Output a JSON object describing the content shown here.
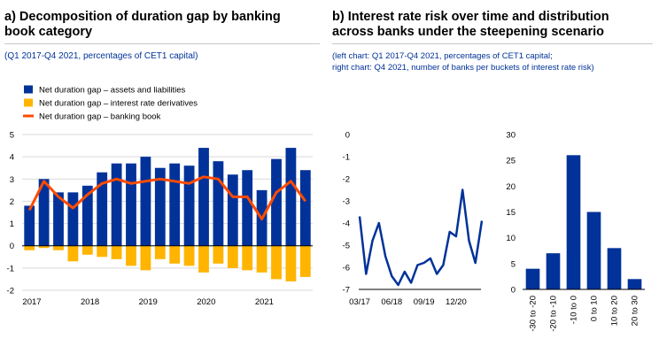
{
  "panel_a": {
    "title": "a) Decomposition of duration gap by banking book category",
    "subtitle": "(Q1 2017-Q4 2021, percentages of CET1 capital)"
  },
  "panel_b": {
    "title": "b) Interest rate risk over time and distribution across banks under the steepening scenario",
    "subtitle_line1": "(left chart: Q1 2017-Q4 2021, percentages of CET1 capital;",
    "subtitle_line2": "right chart: Q4 2021, number of banks per buckets of interest rate risk)"
  },
  "colors": {
    "assets_liabilities": "#003299",
    "derivatives": "#ffb400",
    "banking_book": "#ff4b00",
    "grid": "#d9d9d9",
    "axis": "#000000"
  },
  "chart_data": [
    {
      "type": "bar",
      "stacked": true,
      "x": [
        "2017Q1",
        "2017Q2",
        "2017Q3",
        "2017Q4",
        "2018Q1",
        "2018Q2",
        "2018Q3",
        "2018Q4",
        "2019Q1",
        "2019Q2",
        "2019Q3",
        "2019Q4",
        "2020Q1",
        "2020Q2",
        "2020Q3",
        "2020Q4",
        "2021Q1",
        "2021Q2",
        "2021Q3",
        "2021Q4"
      ],
      "tick_labels": [
        "2017",
        "2018",
        "2019",
        "2020",
        "2021"
      ],
      "tick_indices": [
        0,
        4,
        8,
        12,
        16
      ],
      "ylim": [
        -2,
        5
      ],
      "yticks": [
        -2,
        -1,
        0,
        1,
        2,
        3,
        4,
        5
      ],
      "legend": [
        "Net duration gap – assets and liabilities",
        "Net duration gap – interest rate derivatives",
        "Net duration gap – banking book"
      ],
      "legend_position": "top-left",
      "series": [
        {
          "name": "Net duration gap – assets and liabilities",
          "kind": "bar",
          "values": [
            1.8,
            3.0,
            2.4,
            2.4,
            2.7,
            3.3,
            3.7,
            3.7,
            4.0,
            3.5,
            3.7,
            3.6,
            4.4,
            3.8,
            3.2,
            3.4,
            2.5,
            3.9,
            4.4,
            3.4
          ]
        },
        {
          "name": "Net duration gap – interest rate derivatives",
          "kind": "bar",
          "values": [
            -0.2,
            -0.1,
            -0.2,
            -0.7,
            -0.4,
            -0.5,
            -0.6,
            -0.9,
            -1.1,
            -0.6,
            -0.8,
            -0.9,
            -1.2,
            -0.8,
            -1.0,
            -1.1,
            -1.2,
            -1.5,
            -1.6,
            -1.4
          ]
        },
        {
          "name": "Net duration gap – banking book",
          "kind": "line",
          "values": [
            1.6,
            2.9,
            2.2,
            1.7,
            2.3,
            2.8,
            3.0,
            2.8,
            2.9,
            3.0,
            2.9,
            2.8,
            3.1,
            3.0,
            2.2,
            2.2,
            1.2,
            2.4,
            2.9,
            2.0
          ]
        }
      ]
    },
    {
      "type": "line",
      "x": [
        "03/17",
        "06/17",
        "09/17",
        "12/17",
        "03/18",
        "06/18",
        "09/18",
        "12/18",
        "03/19",
        "06/19",
        "09/19",
        "12/19",
        "03/20",
        "06/20",
        "09/20",
        "12/20",
        "03/21",
        "06/21",
        "09/21",
        "12/21"
      ],
      "tick_labels": [
        "03/17",
        "06/18",
        "09/19",
        "12/20"
      ],
      "tick_indices": [
        0,
        5,
        10,
        15
      ],
      "ylim": [
        -7,
        0
      ],
      "yticks": [
        0,
        -1,
        -2,
        -3,
        -4,
        -5,
        -6,
        -7
      ],
      "series": [
        {
          "values": [
            -3.7,
            -6.3,
            -4.8,
            -4.0,
            -5.5,
            -6.4,
            -6.8,
            -6.2,
            -6.7,
            -5.9,
            -5.8,
            -5.6,
            -6.3,
            -5.9,
            -4.4,
            -4.6,
            -2.5,
            -4.8,
            -5.8,
            -3.9
          ]
        }
      ]
    },
    {
      "type": "bar",
      "categories": [
        "-30 to -20",
        "-20 to -10",
        "-10 to 0",
        "0 to 10",
        "10 to 20",
        "20 to 30"
      ],
      "values": [
        4,
        7,
        26,
        15,
        8,
        2
      ],
      "ylim": [
        0,
        30
      ],
      "yticks": [
        0,
        5,
        10,
        15,
        20,
        25,
        30
      ]
    }
  ]
}
